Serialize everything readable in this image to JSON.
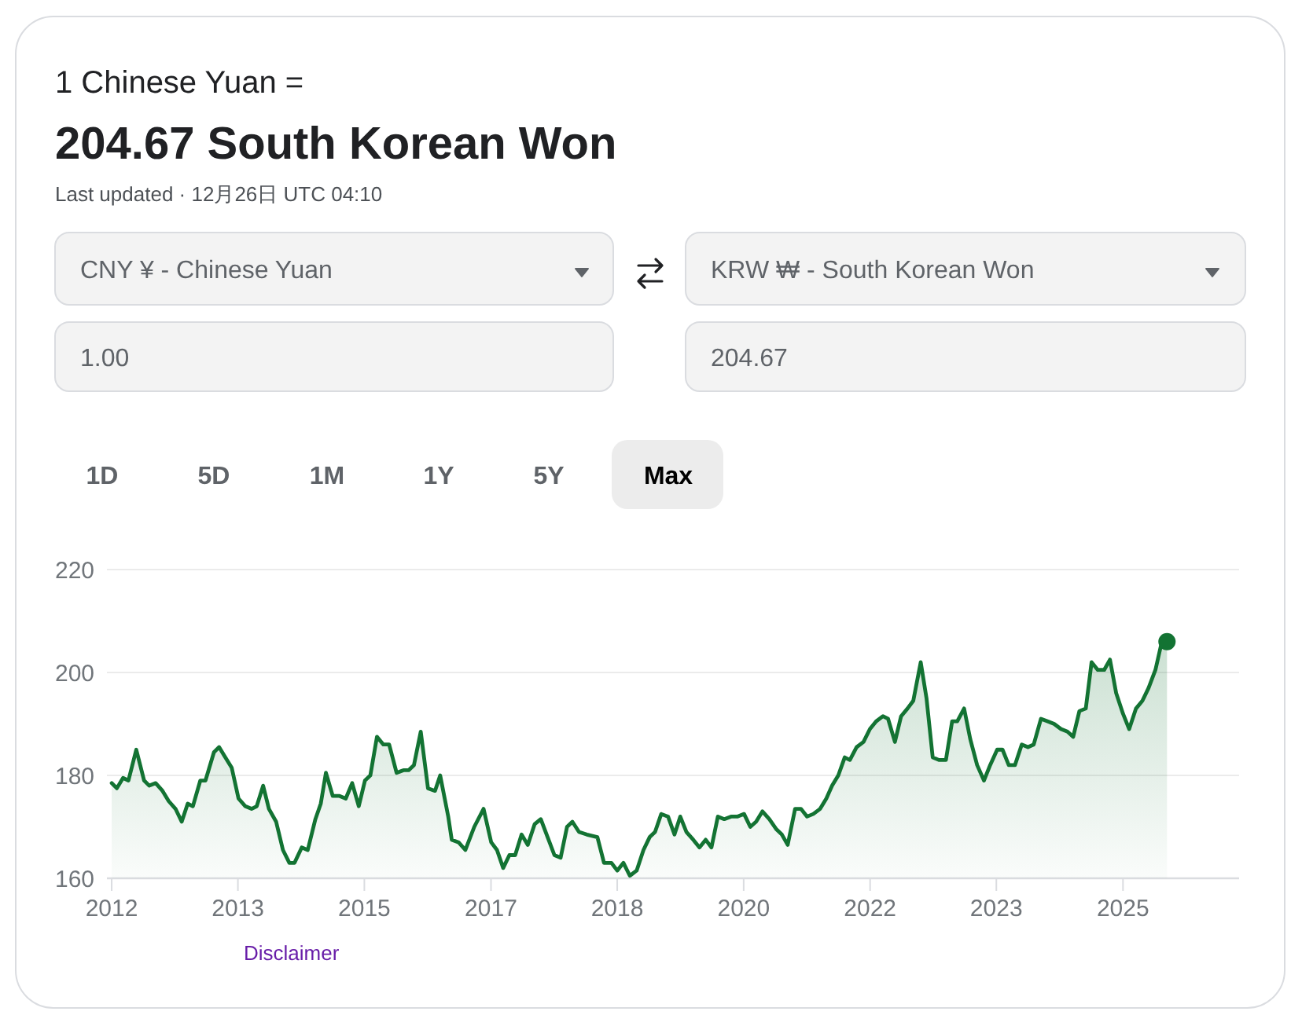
{
  "chart_data": {
    "type": "area",
    "title": "1 Chinese Yuan =",
    "subtitle": "204.67 South Korean Won",
    "annotations": [
      "Last updated · 12月26日 UTC 04:10",
      "CNY ¥ - Chinese Yuan",
      "KRW ₩ - South Korean Won",
      "1.00",
      "204.67",
      "1D",
      "5D",
      "1M",
      "1Y",
      "5Y",
      "Max",
      "Disclaimer"
    ],
    "x": [
      "2012-01-01",
      "2012-01-26",
      "2012-02-25",
      "2012-03-22",
      "2012-04-29",
      "2012-06-06",
      "2012-07-01",
      "2012-08-01",
      "2012-09-03",
      "2012-10-03",
      "2012-11-05",
      "2012-12-05",
      "2013-01-03",
      "2013-01-28",
      "2013-03-05",
      "2013-03-30",
      "2013-05-10",
      "2013-06-04",
      "2013-07-04",
      "2013-08-04",
      "2013-09-06",
      "2013-10-09",
      "2013-11-08",
      "2013-12-03",
      "2014-01-03",
      "2014-01-31",
      "2014-03-07",
      "2014-04-09",
      "2014-05-10",
      "2014-06-04",
      "2014-07-09",
      "2014-08-07",
      "2014-09-13",
      "2014-10-09",
      "2014-11-03",
      "2014-12-06",
      "2015-01-08",
      "2015-02-07",
      "2015-03-10",
      "2015-04-11",
      "2015-05-11",
      "2015-06-06",
      "2015-07-08",
      "2015-08-08",
      "2015-09-05",
      "2015-10-11",
      "2015-11-13",
      "2015-12-08",
      "2016-01-03",
      "2016-02-05",
      "2016-03-11",
      "2016-04-14",
      "2016-05-09",
      "2016-06-17",
      "2016-07-04",
      "2016-08-06",
      "2016-09-08",
      "2016-10-21",
      "2016-12-05",
      "2017-01-11",
      "2017-02-08",
      "2017-03-10",
      "2017-04-09",
      "2017-05-07",
      "2017-06-07",
      "2017-07-07",
      "2017-08-09",
      "2017-09-08",
      "2017-10-11",
      "2017-11-13",
      "2017-12-13",
      "2018-01-13",
      "2018-02-08",
      "2018-03-12",
      "2018-04-19",
      "2018-06-09",
      "2018-07-11",
      "2018-08-16",
      "2018-09-13",
      "2018-10-13",
      "2018-11-13",
      "2018-12-16",
      "2019-01-18",
      "2019-02-17",
      "2019-03-15",
      "2019-04-14",
      "2019-05-17",
      "2019-06-17",
      "2019-07-15",
      "2019-08-14",
      "2019-09-16",
      "2019-10-16",
      "2019-11-15",
      "2019-12-13",
      "2020-01-13",
      "2020-02-13",
      "2020-03-17",
      "2020-04-16",
      "2020-05-19",
      "2020-06-18",
      "2020-07-16",
      "2020-08-16",
      "2020-09-18",
      "2020-10-23",
      "2020-11-18",
      "2020-12-16",
      "2021-01-21",
      "2021-02-18",
      "2021-03-20",
      "2021-04-19",
      "2021-05-22",
      "2021-06-21",
      "2021-07-19",
      "2021-08-18",
      "2021-09-18",
      "2021-10-13",
      "2021-11-15",
      "2021-12-18",
      "2022-01-18",
      "2022-02-17",
      "2022-03-22",
      "2022-04-16",
      "2022-05-19",
      "2022-06-18",
      "2022-07-19",
      "2022-08-16",
      "2022-09-21",
      "2022-10-19",
      "2022-11-18",
      "2022-12-18",
      "2023-01-21",
      "2023-02-20",
      "2023-03-17",
      "2023-04-19",
      "2023-05-19",
      "2023-06-21",
      "2023-07-24",
      "2023-08-23",
      "2023-09-26",
      "2023-10-22",
      "2023-11-21",
      "2023-12-21",
      "2024-01-23",
      "2024-02-22",
      "2024-03-21",
      "2024-04-25",
      "2024-05-28",
      "2024-06-28",
      "2024-07-31",
      "2024-08-31",
      "2024-09-28",
      "2024-10-28",
      "2024-11-28",
      "2024-12-26",
      "2025-01-25",
      "2025-02-25",
      "2025-03-25",
      "2025-04-24",
      "2025-05-27",
      "2025-06-26",
      "2025-07-29",
      "2025-08-29",
      "2025-09-28",
      "2025-10-31",
      "2025-12-01",
      "2025-12-26"
    ],
    "series": [
      {
        "color": "#137333",
        "values": [
          178.5,
          177.5,
          179.5,
          179.0,
          185.0,
          179.0,
          178.0,
          178.5,
          177.0,
          175.0,
          173.5,
          171.0,
          174.5,
          174.0,
          179.0,
          179.0,
          184.5,
          185.5,
          183.5,
          181.5,
          175.5,
          174.0,
          173.5,
          174.0,
          178.0,
          173.5,
          171.0,
          165.5,
          163.0,
          163.0,
          166.0,
          165.5,
          171.5,
          174.5,
          180.5,
          176.0,
          176.0,
          175.5,
          178.5,
          174.0,
          179.0,
          180.0,
          187.5,
          186.0,
          186.0,
          180.5,
          181.0,
          181.0,
          182.0,
          188.5,
          177.5,
          177.0,
          180.0,
          172.0,
          167.5,
          167.0,
          165.5,
          170.0,
          173.5,
          167.0,
          165.5,
          162.0,
          164.5,
          164.5,
          168.5,
          166.5,
          170.5,
          171.5,
          168.0,
          164.5,
          164.0,
          170.0,
          171.0,
          169.0,
          168.5,
          168.0,
          163.0,
          163.0,
          161.5,
          163.0,
          160.5,
          161.5,
          165.5,
          168.0,
          169.0,
          172.5,
          172.0,
          168.5,
          172.0,
          169.0,
          167.5,
          166.0,
          167.5,
          166.0,
          172.0,
          171.5,
          172.0,
          172.0,
          172.5,
          170.0,
          171.0,
          173.0,
          171.5,
          169.5,
          168.5,
          166.5,
          173.5,
          173.5,
          172.0,
          172.5,
          173.5,
          175.5,
          178.0,
          180.0,
          183.5,
          183.0,
          185.5,
          186.5,
          189.0,
          190.5,
          191.5,
          191.0,
          186.5,
          191.5,
          193.0,
          194.5,
          202.0,
          195.0,
          183.5,
          183.0,
          183.0,
          190.5,
          190.5,
          193.0,
          187.0,
          182.0,
          179.0,
          182.0,
          185.0,
          185.0,
          182.0,
          182.0,
          186.0,
          185.5,
          186.0,
          191.0,
          190.5,
          190.0,
          189.0,
          188.5,
          187.5,
          192.5,
          193.0,
          202.0,
          200.5,
          200.5,
          202.5,
          196.0,
          192.0,
          189.0,
          193.0,
          194.5,
          197.0,
          200.5,
          206.0,
          206.0
        ]
      },
      {
        "type": "scatter",
        "color": "#137333",
        "x": [
          "2025-12-26"
        ],
        "values": [
          206.0
        ]
      }
    ],
    "xlim": [
      "2011-12-09",
      "2026-12-10"
    ],
    "xticks": [
      {
        "value": "2012-01-01",
        "label": "2012"
      },
      {
        "value": "2013-09-03",
        "label": "2013"
      },
      {
        "value": "2015-05-08",
        "label": "2015"
      },
      {
        "value": "2017-01-10",
        "label": "2017"
      },
      {
        "value": "2018-09-13",
        "label": "2018"
      },
      {
        "value": "2020-05-17",
        "label": "2020"
      },
      {
        "value": "2022-01-19",
        "label": "2022"
      },
      {
        "value": "2023-09-22",
        "label": "2023"
      },
      {
        "value": "2025-05-27",
        "label": "2025"
      }
    ],
    "ylim": [
      160,
      220
    ],
    "yticks": [
      160,
      180,
      200,
      220
    ],
    "grid": "y"
  }
}
